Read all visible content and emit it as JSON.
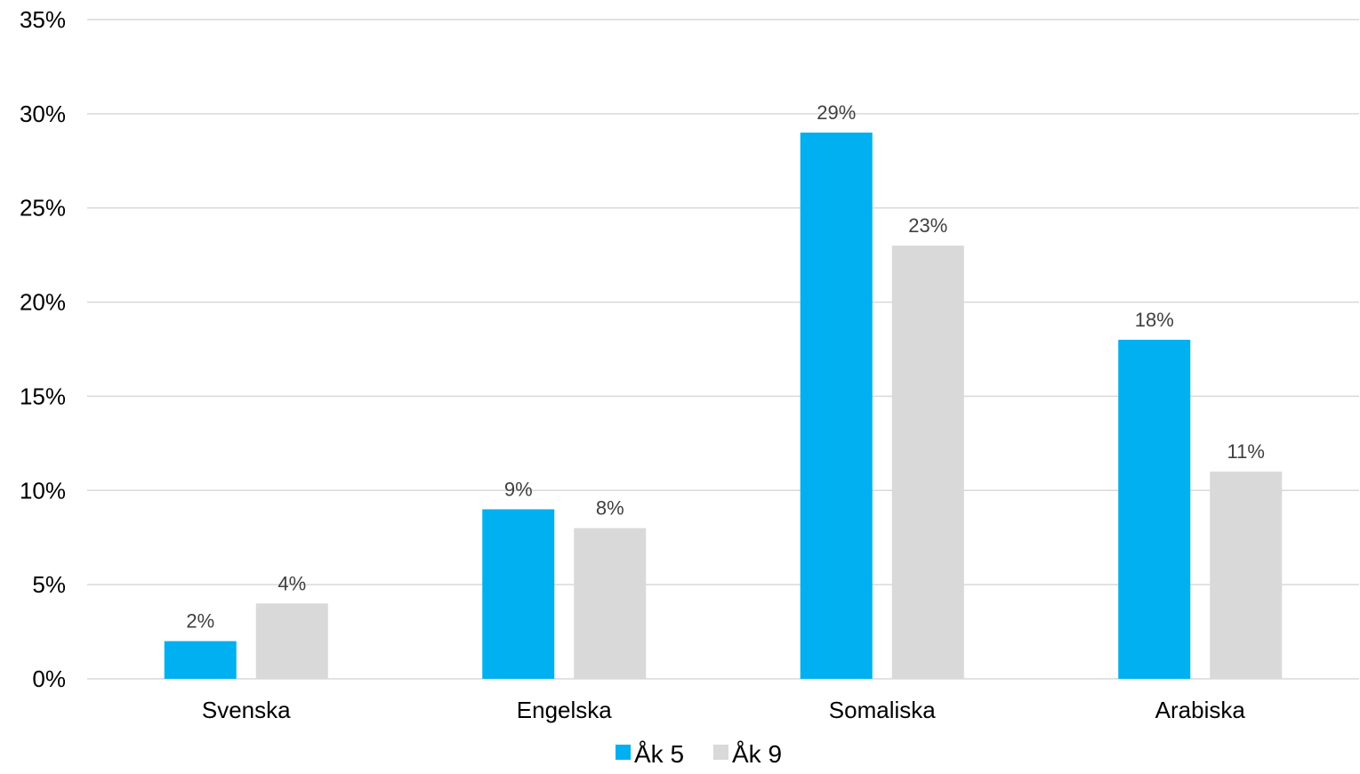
{
  "chart_data": {
    "type": "bar",
    "categories": [
      "Svenska",
      "Engelska",
      "Somaliska",
      "Arabiska"
    ],
    "series": [
      {
        "name": "Åk 5",
        "values": [
          2,
          9,
          29,
          18
        ],
        "color": "#00B0F0",
        "labels": [
          "2%",
          "9%",
          "29%",
          "18%"
        ]
      },
      {
        "name": "Åk 9",
        "values": [
          4,
          8,
          23,
          11
        ],
        "color": "#D9D9D9",
        "labels": [
          "4%",
          "8%",
          "23%",
          "11%"
        ]
      }
    ],
    "ylim": [
      0,
      35
    ],
    "yticks": [
      0,
      5,
      10,
      15,
      20,
      25,
      30,
      35
    ],
    "ytick_labels": [
      "0%",
      "5%",
      "10%",
      "15%",
      "20%",
      "25%",
      "30%",
      "35%"
    ],
    "grid": true,
    "gridline_color": "#D9D9D9",
    "legend_position": "bottom"
  }
}
